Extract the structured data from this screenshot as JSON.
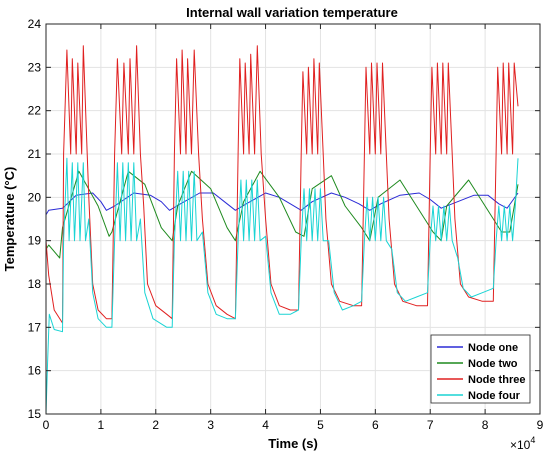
{
  "chart_data": {
    "type": "line",
    "title": "Internal wall variation temperature",
    "xlabel": "Time (s)",
    "ylabel": "Temperature (°C)",
    "x_multiplier_label": "×10",
    "x_multiplier_exp": "4",
    "xlim": [
      0,
      9
    ],
    "ylim": [
      15,
      24
    ],
    "xticks": [
      "0",
      "1",
      "2",
      "3",
      "4",
      "5",
      "6",
      "7",
      "8",
      "9"
    ],
    "yticks": [
      "15",
      "16",
      "17",
      "18",
      "19",
      "20",
      "21",
      "22",
      "23",
      "24"
    ],
    "grid": true,
    "legend_position": "bottom-right",
    "series": [
      {
        "name": "Node one",
        "color": "#2b2bd6",
        "points": [
          [
            0,
            19.6
          ],
          [
            0.05,
            19.7
          ],
          [
            0.3,
            19.75
          ],
          [
            0.55,
            20.05
          ],
          [
            0.85,
            20.1
          ],
          [
            1.0,
            19.9
          ],
          [
            1.1,
            19.7
          ],
          [
            1.25,
            19.8
          ],
          [
            1.6,
            20.1
          ],
          [
            1.9,
            20.05
          ],
          [
            2.1,
            19.9
          ],
          [
            2.25,
            19.7
          ],
          [
            2.45,
            19.85
          ],
          [
            2.8,
            20.1
          ],
          [
            3.05,
            20.1
          ],
          [
            3.25,
            19.9
          ],
          [
            3.45,
            19.7
          ],
          [
            3.65,
            19.85
          ],
          [
            4.0,
            20.1
          ],
          [
            4.25,
            20.0
          ],
          [
            4.45,
            19.85
          ],
          [
            4.65,
            19.7
          ],
          [
            4.85,
            19.9
          ],
          [
            5.2,
            20.1
          ],
          [
            5.45,
            20.0
          ],
          [
            5.7,
            19.85
          ],
          [
            5.9,
            19.7
          ],
          [
            6.1,
            19.85
          ],
          [
            6.45,
            20.05
          ],
          [
            6.8,
            20.1
          ],
          [
            7.0,
            19.95
          ],
          [
            7.2,
            19.75
          ],
          [
            7.4,
            19.85
          ],
          [
            7.8,
            20.05
          ],
          [
            8.05,
            20.05
          ],
          [
            8.25,
            19.85
          ],
          [
            8.4,
            19.75
          ],
          [
            8.6,
            20.1
          ]
        ]
      },
      {
        "name": "Node two",
        "color": "#1f8a1f",
        "points": [
          [
            0,
            18.8
          ],
          [
            0.05,
            18.9
          ],
          [
            0.25,
            18.6
          ],
          [
            0.3,
            19.3
          ],
          [
            0.6,
            20.6
          ],
          [
            0.95,
            19.8
          ],
          [
            1.15,
            19.1
          ],
          [
            1.2,
            19.2
          ],
          [
            1.5,
            20.6
          ],
          [
            1.8,
            20.3
          ],
          [
            2.1,
            19.3
          ],
          [
            2.3,
            19.0
          ],
          [
            2.4,
            19.8
          ],
          [
            2.65,
            20.6
          ],
          [
            3.0,
            20.2
          ],
          [
            3.3,
            19.3
          ],
          [
            3.45,
            19.0
          ],
          [
            3.6,
            19.9
          ],
          [
            3.9,
            20.6
          ],
          [
            4.25,
            20.0
          ],
          [
            4.55,
            19.2
          ],
          [
            4.7,
            19.1
          ],
          [
            4.85,
            20.2
          ],
          [
            5.2,
            20.5
          ],
          [
            5.45,
            19.8
          ],
          [
            5.75,
            19.3
          ],
          [
            5.9,
            19.0
          ],
          [
            6.05,
            20.0
          ],
          [
            6.45,
            20.4
          ],
          [
            6.75,
            19.8
          ],
          [
            7.05,
            19.2
          ],
          [
            7.2,
            19.0
          ],
          [
            7.3,
            19.8
          ],
          [
            7.7,
            20.4
          ],
          [
            8.0,
            19.8
          ],
          [
            8.3,
            19.2
          ],
          [
            8.45,
            19.2
          ],
          [
            8.6,
            20.3
          ]
        ]
      },
      {
        "name": "Node three",
        "color": "#e02020",
        "points": [
          [
            0,
            19.0
          ],
          [
            0.05,
            18.2
          ],
          [
            0.15,
            17.4
          ],
          [
            0.3,
            17.1
          ],
          [
            0.32,
            21.0
          ],
          [
            0.38,
            23.4
          ],
          [
            0.45,
            21.0
          ],
          [
            0.48,
            23.2
          ],
          [
            0.55,
            21.0
          ],
          [
            0.58,
            23.1
          ],
          [
            0.65,
            21.0
          ],
          [
            0.68,
            23.5
          ],
          [
            0.75,
            21.0
          ],
          [
            0.78,
            20.0
          ],
          [
            0.85,
            18.0
          ],
          [
            0.95,
            17.4
          ],
          [
            1.1,
            17.2
          ],
          [
            1.2,
            17.2
          ],
          [
            1.25,
            21.0
          ],
          [
            1.3,
            23.2
          ],
          [
            1.38,
            21.0
          ],
          [
            1.42,
            23.1
          ],
          [
            1.5,
            21.0
          ],
          [
            1.53,
            23.2
          ],
          [
            1.6,
            21.0
          ],
          [
            1.65,
            23.5
          ],
          [
            1.72,
            21.0
          ],
          [
            1.78,
            19.8
          ],
          [
            1.85,
            18.0
          ],
          [
            2.0,
            17.5
          ],
          [
            2.2,
            17.3
          ],
          [
            2.3,
            17.2
          ],
          [
            2.34,
            21.0
          ],
          [
            2.38,
            23.2
          ],
          [
            2.45,
            21.0
          ],
          [
            2.48,
            23.4
          ],
          [
            2.55,
            21.0
          ],
          [
            2.58,
            23.2
          ],
          [
            2.65,
            21.0
          ],
          [
            2.7,
            23.4
          ],
          [
            2.78,
            21.0
          ],
          [
            2.85,
            19.5
          ],
          [
            2.95,
            18.0
          ],
          [
            3.1,
            17.5
          ],
          [
            3.3,
            17.3
          ],
          [
            3.45,
            17.2
          ],
          [
            3.5,
            21.0
          ],
          [
            3.53,
            23.2
          ],
          [
            3.6,
            21.0
          ],
          [
            3.63,
            23.1
          ],
          [
            3.7,
            21.0
          ],
          [
            3.73,
            23.3
          ],
          [
            3.8,
            21.0
          ],
          [
            3.85,
            23.5
          ],
          [
            3.92,
            21.0
          ],
          [
            4.0,
            19.5
          ],
          [
            4.1,
            18.0
          ],
          [
            4.25,
            17.5
          ],
          [
            4.45,
            17.4
          ],
          [
            4.6,
            17.4
          ],
          [
            4.65,
            21.0
          ],
          [
            4.68,
            22.9
          ],
          [
            4.75,
            21.0
          ],
          [
            4.78,
            23.0
          ],
          [
            4.85,
            21.0
          ],
          [
            4.88,
            23.2
          ],
          [
            4.95,
            21.0
          ],
          [
            4.98,
            23.1
          ],
          [
            5.05,
            21.0
          ],
          [
            5.1,
            19.5
          ],
          [
            5.2,
            18.0
          ],
          [
            5.35,
            17.6
          ],
          [
            5.6,
            17.5
          ],
          [
            5.75,
            17.5
          ],
          [
            5.8,
            21.0
          ],
          [
            5.83,
            23.0
          ],
          [
            5.9,
            21.0
          ],
          [
            5.93,
            23.1
          ],
          [
            6.0,
            21.0
          ],
          [
            6.03,
            23.1
          ],
          [
            6.1,
            21.0
          ],
          [
            6.13,
            23.1
          ],
          [
            6.2,
            21.0
          ],
          [
            6.25,
            19.5
          ],
          [
            6.35,
            18.0
          ],
          [
            6.5,
            17.6
          ],
          [
            6.75,
            17.5
          ],
          [
            6.95,
            17.5
          ],
          [
            7.0,
            21.0
          ],
          [
            7.03,
            23.0
          ],
          [
            7.1,
            21.0
          ],
          [
            7.13,
            23.1
          ],
          [
            7.2,
            21.0
          ],
          [
            7.23,
            23.1
          ],
          [
            7.3,
            21.0
          ],
          [
            7.33,
            23.1
          ],
          [
            7.4,
            21.0
          ],
          [
            7.45,
            19.5
          ],
          [
            7.55,
            18.0
          ],
          [
            7.7,
            17.7
          ],
          [
            7.95,
            17.6
          ],
          [
            8.15,
            17.6
          ],
          [
            8.2,
            21.0
          ],
          [
            8.23,
            23.0
          ],
          [
            8.3,
            21.0
          ],
          [
            8.33,
            23.1
          ],
          [
            8.4,
            21.0
          ],
          [
            8.43,
            23.1
          ],
          [
            8.5,
            21.0
          ],
          [
            8.53,
            23.1
          ],
          [
            8.6,
            22.1
          ]
        ]
      },
      {
        "name": "Node four",
        "color": "#1ad4d4",
        "points": [
          [
            0,
            15.0
          ],
          [
            0.03,
            16.2
          ],
          [
            0.06,
            17.3
          ],
          [
            0.15,
            16.95
          ],
          [
            0.3,
            16.9
          ],
          [
            0.32,
            19.0
          ],
          [
            0.38,
            20.9
          ],
          [
            0.42,
            19.0
          ],
          [
            0.48,
            20.8
          ],
          [
            0.52,
            19.0
          ],
          [
            0.58,
            20.8
          ],
          [
            0.62,
            19.0
          ],
          [
            0.68,
            20.8
          ],
          [
            0.72,
            19.0
          ],
          [
            0.78,
            19.5
          ],
          [
            0.85,
            17.8
          ],
          [
            0.95,
            17.2
          ],
          [
            1.1,
            17.0
          ],
          [
            1.2,
            17.0
          ],
          [
            1.25,
            19.0
          ],
          [
            1.3,
            20.8
          ],
          [
            1.35,
            19.0
          ],
          [
            1.4,
            20.8
          ],
          [
            1.45,
            19.0
          ],
          [
            1.5,
            20.8
          ],
          [
            1.55,
            19.0
          ],
          [
            1.6,
            20.8
          ],
          [
            1.65,
            19.0
          ],
          [
            1.72,
            19.5
          ],
          [
            1.8,
            17.8
          ],
          [
            1.95,
            17.2
          ],
          [
            2.2,
            17.0
          ],
          [
            2.3,
            17.0
          ],
          [
            2.34,
            19.0
          ],
          [
            2.4,
            20.6
          ],
          [
            2.45,
            19.0
          ],
          [
            2.5,
            20.6
          ],
          [
            2.55,
            19.0
          ],
          [
            2.6,
            20.6
          ],
          [
            2.65,
            19.0
          ],
          [
            2.7,
            20.6
          ],
          [
            2.75,
            19.0
          ],
          [
            2.85,
            19.2
          ],
          [
            2.95,
            17.8
          ],
          [
            3.1,
            17.3
          ],
          [
            3.3,
            17.2
          ],
          [
            3.45,
            17.2
          ],
          [
            3.5,
            19.0
          ],
          [
            3.55,
            20.4
          ],
          [
            3.6,
            19.0
          ],
          [
            3.65,
            20.4
          ],
          [
            3.7,
            19.0
          ],
          [
            3.75,
            20.4
          ],
          [
            3.8,
            19.0
          ],
          [
            3.85,
            20.4
          ],
          [
            3.9,
            19.0
          ],
          [
            4.0,
            19.1
          ],
          [
            4.1,
            17.8
          ],
          [
            4.25,
            17.3
          ],
          [
            4.45,
            17.3
          ],
          [
            4.6,
            17.4
          ],
          [
            4.65,
            19.0
          ],
          [
            4.7,
            20.2
          ],
          [
            4.75,
            19.0
          ],
          [
            4.8,
            20.2
          ],
          [
            4.85,
            19.0
          ],
          [
            4.9,
            20.2
          ],
          [
            4.95,
            19.0
          ],
          [
            5.0,
            20.2
          ],
          [
            5.05,
            19.0
          ],
          [
            5.15,
            19.0
          ],
          [
            5.25,
            17.8
          ],
          [
            5.4,
            17.4
          ],
          [
            5.6,
            17.5
          ],
          [
            5.75,
            17.6
          ],
          [
            5.8,
            19.0
          ],
          [
            5.85,
            20.0
          ],
          [
            5.9,
            19.0
          ],
          [
            5.95,
            20.0
          ],
          [
            6.0,
            19.0
          ],
          [
            6.05,
            20.0
          ],
          [
            6.1,
            19.0
          ],
          [
            6.15,
            20.0
          ],
          [
            6.2,
            19.0
          ],
          [
            6.3,
            18.8
          ],
          [
            6.4,
            17.8
          ],
          [
            6.55,
            17.6
          ],
          [
            6.75,
            17.7
          ],
          [
            6.95,
            17.8
          ],
          [
            7.0,
            19.0
          ],
          [
            7.05,
            19.8
          ],
          [
            7.1,
            19.0
          ],
          [
            7.15,
            19.8
          ],
          [
            7.2,
            19.0
          ],
          [
            7.25,
            19.8
          ],
          [
            7.3,
            19.0
          ],
          [
            7.35,
            19.8
          ],
          [
            7.4,
            19.0
          ],
          [
            7.5,
            18.6
          ],
          [
            7.6,
            17.9
          ],
          [
            7.75,
            17.7
          ],
          [
            7.95,
            17.8
          ],
          [
            8.15,
            17.9
          ],
          [
            8.2,
            19.0
          ],
          [
            8.25,
            19.8
          ],
          [
            8.3,
            19.0
          ],
          [
            8.35,
            19.8
          ],
          [
            8.4,
            19.0
          ],
          [
            8.45,
            19.8
          ],
          [
            8.5,
            19.0
          ],
          [
            8.55,
            19.8
          ],
          [
            8.6,
            20.9
          ]
        ]
      }
    ]
  }
}
